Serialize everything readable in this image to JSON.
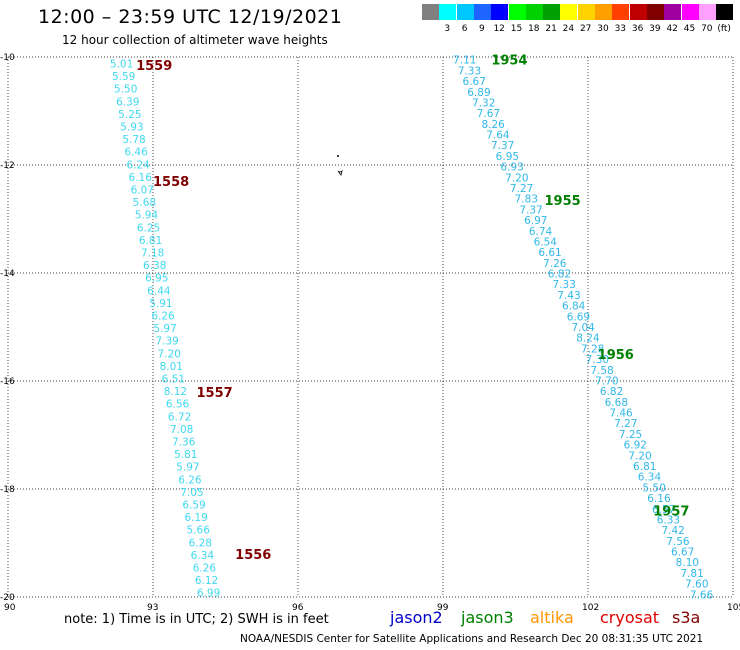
{
  "header": {
    "title": "12:00 – 23:59 UTC 12/19/2021",
    "subtitle": "12 hour collection of altimeter wave heights"
  },
  "legend": {
    "swatches": [
      {
        "color": "#808080",
        "label": ""
      },
      {
        "color": "#00ffff",
        "label": "3"
      },
      {
        "color": "#00c8ff",
        "label": "6"
      },
      {
        "color": "#1e64ff",
        "label": "9"
      },
      {
        "color": "#0000ff",
        "label": "12"
      },
      {
        "color": "#00ff00",
        "label": "15"
      },
      {
        "color": "#00d200",
        "label": "18"
      },
      {
        "color": "#00a000",
        "label": "21"
      },
      {
        "color": "#ffff00",
        "label": "24"
      },
      {
        "color": "#ffd200",
        "label": "27"
      },
      {
        "color": "#ffa000",
        "label": "30"
      },
      {
        "color": "#ff4000",
        "label": "33"
      },
      {
        "color": "#c00000",
        "label": "36"
      },
      {
        "color": "#800000",
        "label": "39"
      },
      {
        "color": "#a000a0",
        "label": "42"
      },
      {
        "color": "#ff00ff",
        "label": "45"
      },
      {
        "color": "#ffa0ff",
        "label": "70"
      },
      {
        "color": "#000000",
        "label": "(ft)"
      }
    ]
  },
  "chart_data": {
    "type": "scatter",
    "x_range": [
      90,
      105
    ],
    "y_range": [
      -20,
      -10
    ],
    "x_ticks": [
      "90",
      "93",
      "96",
      "99",
      "102",
      "105"
    ],
    "y_ticks": [
      "-10",
      "-12",
      "-14",
      "-16",
      "-18",
      "-20"
    ],
    "grid": true,
    "track_west": {
      "colors": [
        "#40e0f0",
        "#40e0f0",
        "#40e0f0",
        "#40e0f0",
        "#40e0f0",
        "#40e0f0",
        "#40e0f0",
        "#40e0f0",
        "#40e0f0",
        "#40e0f0",
        "#40e0f0",
        "#40e0f0",
        "#40e0f0",
        "#40e0f0",
        "#40e0f0",
        "#40e0f0",
        "#40e0f0",
        "#40e0f0",
        "#40e0f0",
        "#40e0f0",
        "#40e0f0",
        "#40e0f0",
        "#40e0f0",
        "#40e0f0",
        "#40e0f0",
        "#40e0f0",
        "#40e0f0",
        "#40e0f0",
        "#40e0f0",
        "#40e0f0",
        "#40e0f0",
        "#40e0f0",
        "#40e0f0",
        "#40e0f0",
        "#40e0f0",
        "#40e0f0",
        "#40e0f0",
        "#40e0f0",
        "#40e0f0",
        "#40e0f0",
        "#40e0f0",
        "#40e0f0",
        "#40e0f0"
      ],
      "values": [
        "5.01",
        "5.59",
        "5.50",
        "6.39",
        "5.25",
        "5.93",
        "5.78",
        "6.46",
        "6.24",
        "6.16",
        "6.07",
        "5.68",
        "5.94",
        "6.25",
        "6.81",
        "7.18",
        "6.38",
        "6.95",
        "6.44",
        "5.91",
        "6.26",
        "5.97",
        "7.39",
        "7.20",
        "8.01",
        "6.51",
        "8.12",
        "6.56",
        "6.72",
        "7.08",
        "7.36",
        "5.81",
        "5.97",
        "6.26",
        "7.05",
        "6.59",
        "6.19",
        "5.66",
        "6.28",
        "6.34",
        "6.26",
        "6.12",
        "6.99"
      ],
      "lon_start": 92.35,
      "lat_start": -10.12,
      "lon_end": 94.15,
      "lat_end": -19.92
    },
    "track_east": {
      "values": [
        "7.11",
        "7.33",
        "6.67",
        "6.89",
        "7.32",
        "7.67",
        "8.26",
        "7.64",
        "7.37",
        "6.95",
        "6.93",
        "7.20",
        "7.27",
        "7.83",
        "7.37",
        "6.97",
        "6.74",
        "6.54",
        "6.61",
        "7.26",
        "6.82",
        "7.33",
        "7.43",
        "6.84",
        "6.69",
        "7.04",
        "8.24",
        "7.28",
        "7.30",
        "7.58",
        "7.70",
        "6.82",
        "6.68",
        "7.46",
        "7.27",
        "7.25",
        "6.92",
        "7.20",
        "6.81",
        "6.34",
        "5.50",
        "6.16",
        "6.57",
        "6.33",
        "7.42",
        "7.56",
        "6.67",
        "8.10",
        "7.81",
        "7.60",
        "7.66"
      ],
      "lon_start": 99.45,
      "lat_start": -10.05,
      "lon_end": 104.35,
      "lat_end": -19.95
    },
    "pass_labels": [
      {
        "text": "1559",
        "lon": 92.65,
        "lat": -10.15,
        "color": "#800000"
      },
      {
        "text": "1558",
        "lon": 93.0,
        "lat": -12.3,
        "color": "#800000"
      },
      {
        "text": "1557",
        "lon": 93.9,
        "lat": -16.2,
        "color": "#800000"
      },
      {
        "text": "1556",
        "lon": 94.7,
        "lat": -19.2,
        "color": "#800000"
      },
      {
        "text": "1954",
        "lon": 100.0,
        "lat": -10.05,
        "color": "#008000"
      },
      {
        "text": "1955",
        "lon": 101.1,
        "lat": -12.65,
        "color": "#008000"
      },
      {
        "text": "1956",
        "lon": 102.2,
        "lat": -15.5,
        "color": "#008000"
      },
      {
        "text": "1957",
        "lon": 103.35,
        "lat": -18.4,
        "color": "#008000"
      }
    ]
  },
  "footer": {
    "note": "note: 1) Time is in UTC; 2) SWH is in feet",
    "satellites": [
      {
        "name": "jason2",
        "color": "#0000c8"
      },
      {
        "name": "jason3",
        "color": "#008000"
      },
      {
        "name": "altika",
        "color": "#ff9600"
      },
      {
        "name": "cryosat",
        "color": "#e00000"
      },
      {
        "name": "s3a",
        "color": "#800000"
      }
    ],
    "credit": "NOAA/NESDIS Center for Satellite Applications and Research    Dec 20 08:31:35 UTC 2021"
  }
}
